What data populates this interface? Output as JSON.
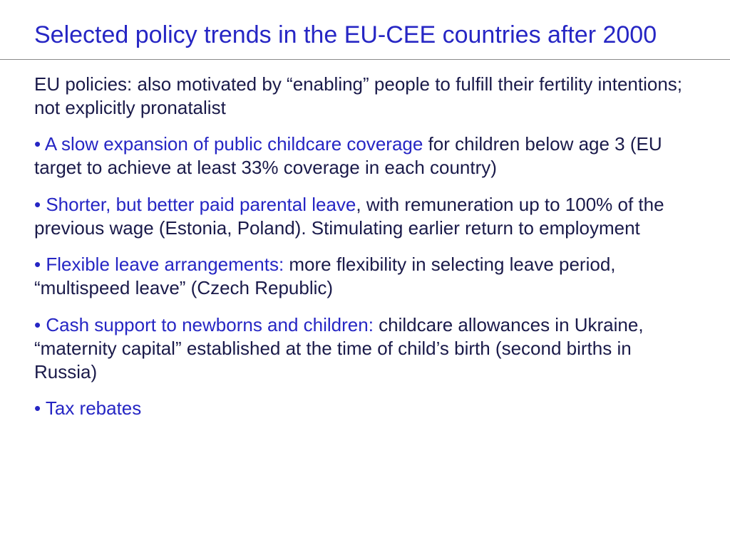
{
  "colors": {
    "title": "#2626c4",
    "body_text": "#1a1a4a",
    "highlight": "#2626c4",
    "divider": "#8a8a8a",
    "background": "#ffffff"
  },
  "typography": {
    "title_fontsize": 34,
    "body_fontsize": 26,
    "font_family": "Arial"
  },
  "title": "Selected policy trends in the EU-CEE countries after 2000",
  "intro": "EU policies: also motivated by “enabling” people to fulfill their fertility intentions; not explicitly pronatalist",
  "bullets": [
    {
      "emph": "A slow expansion of public childcare coverage",
      "rest": " for children below age 3 (EU target to achieve at least 33% coverage in each country)"
    },
    {
      "emph": "Shorter, but better paid parental leave",
      "rest": ", with remuneration up to 100% of the previous wage (Estonia, Poland). Stimulating earlier return to employment"
    },
    {
      "emph": "Flexible leave arrangements:",
      "rest": " more flexibility in selecting leave period, “multispeed leave” (Czech Republic)"
    },
    {
      "emph": "Cash support to newborns and children:",
      "rest": " childcare allowances in Ukraine, “maternity capital” established at the time of child’s birth (second births in Russia)"
    },
    {
      "emph": "Tax rebates",
      "rest": ""
    }
  ]
}
